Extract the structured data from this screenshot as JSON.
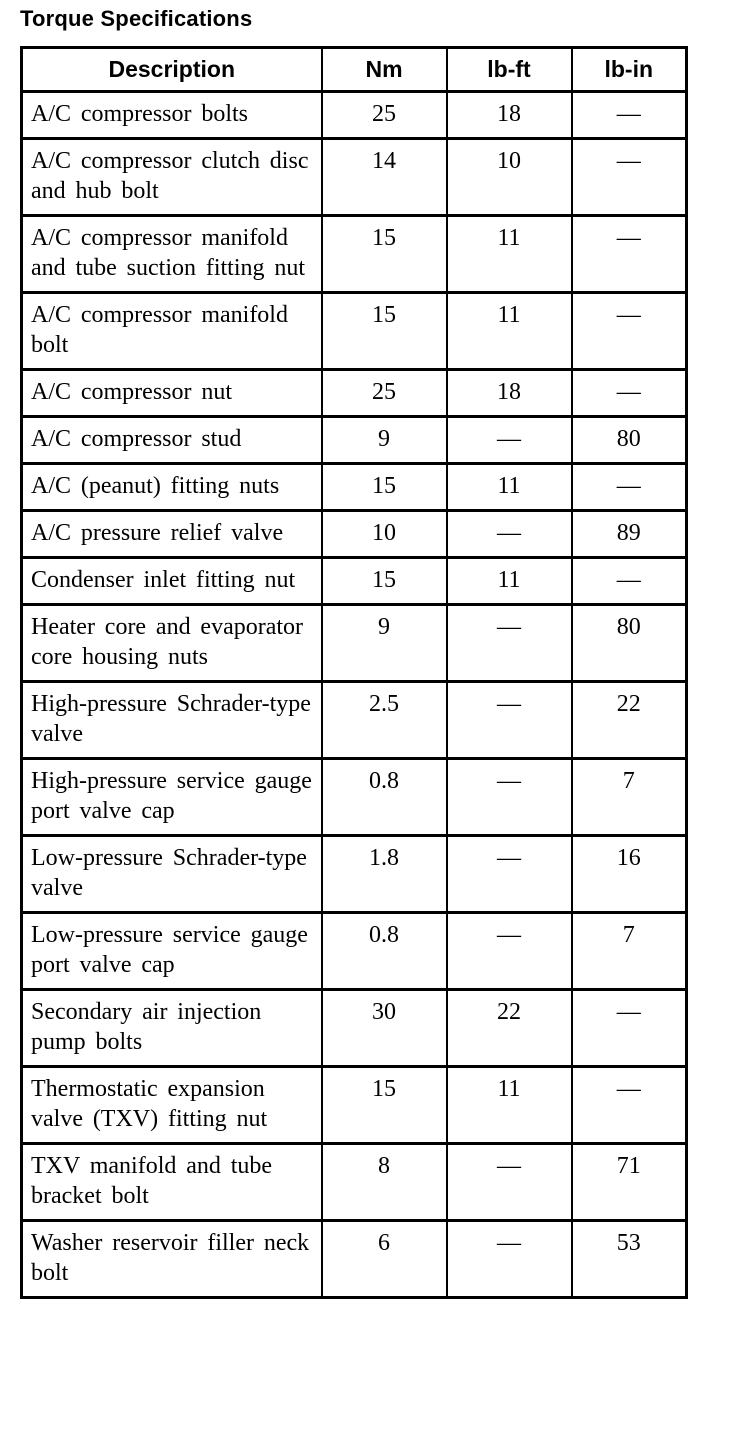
{
  "page": {
    "title": "Torque Specifications"
  },
  "table": {
    "headers": [
      "Description",
      "Nm",
      "lb-ft",
      "lb-in"
    ],
    "rows": [
      {
        "description": "A/C compressor bolts",
        "nm": "25",
        "lb_ft": "18",
        "lb_in": "—"
      },
      {
        "description": "A/C compressor clutch disc and hub bolt",
        "nm": "14",
        "lb_ft": "10",
        "lb_in": "—"
      },
      {
        "description": "A/C compressor manifold and tube suction fitting nut",
        "nm": "15",
        "lb_ft": "11",
        "lb_in": "—"
      },
      {
        "description": "A/C compressor manifold bolt",
        "nm": "15",
        "lb_ft": "11",
        "lb_in": "—"
      },
      {
        "description": "A/C compressor nut",
        "nm": "25",
        "lb_ft": "18",
        "lb_in": "—"
      },
      {
        "description": "A/C compressor stud",
        "nm": "9",
        "lb_ft": "—",
        "lb_in": "80"
      },
      {
        "description": "A/C (peanut) fitting nuts",
        "nm": "15",
        "lb_ft": "11",
        "lb_in": "—"
      },
      {
        "description": "A/C pressure relief valve",
        "nm": "10",
        "lb_ft": "—",
        "lb_in": "89"
      },
      {
        "description": "Condenser inlet fitting nut",
        "nm": "15",
        "lb_ft": "11",
        "lb_in": "—"
      },
      {
        "description": "Heater core and evaporator core housing nuts",
        "nm": "9",
        "lb_ft": "—",
        "lb_in": "80"
      },
      {
        "description": "High-pressure Schrader-type valve",
        "nm": "2.5",
        "lb_ft": "—",
        "lb_in": "22"
      },
      {
        "description": "High-pressure service gauge port valve cap",
        "nm": "0.8",
        "lb_ft": "—",
        "lb_in": "7"
      },
      {
        "description": "Low-pressure Schrader-type valve",
        "nm": "1.8",
        "lb_ft": "—",
        "lb_in": "16"
      },
      {
        "description": "Low-pressure service gauge port valve cap",
        "nm": "0.8",
        "lb_ft": "—",
        "lb_in": "7"
      },
      {
        "description": "Secondary air injection pump bolts",
        "nm": "30",
        "lb_ft": "22",
        "lb_in": "—"
      },
      {
        "description": "Thermostatic expansion valve (TXV) fitting nut",
        "nm": "15",
        "lb_ft": "11",
        "lb_in": "—"
      },
      {
        "description": "TXV manifold and tube bracket bolt",
        "nm": "8",
        "lb_ft": "—",
        "lb_in": "71"
      },
      {
        "description": "Washer reservoir filler neck bolt",
        "nm": "6",
        "lb_ft": "—",
        "lb_in": "53"
      }
    ]
  }
}
